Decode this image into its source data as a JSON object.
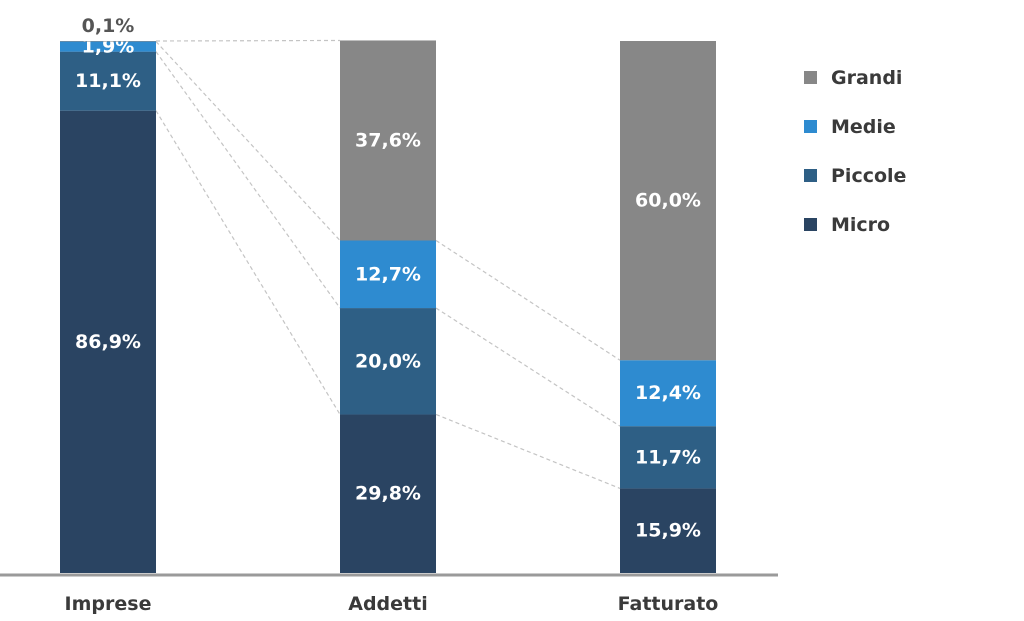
{
  "chart_data": {
    "type": "bar",
    "stacked": true,
    "percent": true,
    "categories": [
      "Imprese",
      "Addetti",
      "Fatturato"
    ],
    "series": [
      {
        "name": "Micro",
        "color": "#2a4462",
        "values": [
          86.9,
          29.8,
          15.9
        ],
        "labels": [
          "86,9%",
          "29,8%",
          "15,9%"
        ]
      },
      {
        "name": "Piccole",
        "color": "#2e5f85",
        "values": [
          11.1,
          20.0,
          11.7
        ],
        "labels": [
          "11,1%",
          "20,0%",
          "11,7%"
        ]
      },
      {
        "name": "Medie",
        "color": "#2e8bd0",
        "values": [
          1.9,
          12.7,
          12.4
        ],
        "labels": [
          "1,9%",
          "12,7%",
          "12,4%"
        ]
      },
      {
        "name": "Grandi",
        "color": "#878787",
        "values": [
          0.1,
          37.6,
          60.0
        ],
        "labels": [
          "0,1%",
          "37,6%",
          "60,0%"
        ]
      }
    ],
    "legend_order": [
      "Grandi",
      "Medie",
      "Piccole",
      "Micro"
    ],
    "legend_position": "top-right",
    "ylim": [
      0,
      100
    ],
    "grid": false,
    "connector_lines": true,
    "title": "",
    "xlabel": "",
    "ylabel": ""
  }
}
